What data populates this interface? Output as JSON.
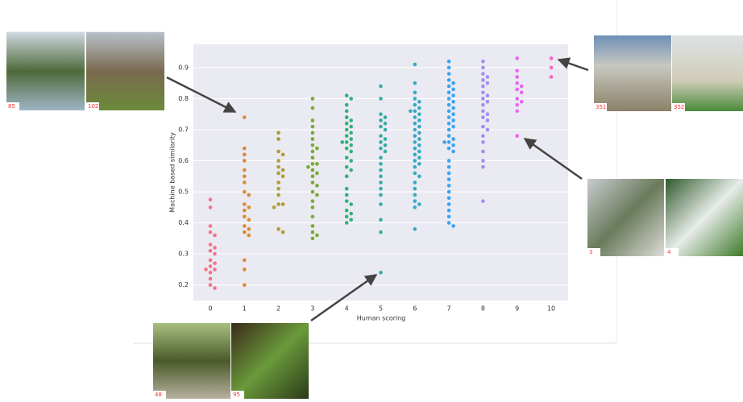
{
  "chart_data": {
    "type": "swarm",
    "x_label": "Human scoring",
    "y_label": "Machine based similarity",
    "categories": [
      "0",
      "1",
      "2",
      "3",
      "4",
      "5",
      "6",
      "7",
      "8",
      "9",
      "10"
    ],
    "colors": [
      "#f77189",
      "#dc8932",
      "#ae9d31",
      "#77ab31",
      "#33b07a",
      "#36ada4",
      "#38a9c5",
      "#3ba3ec",
      "#a48cf4",
      "#e866f4",
      "#f668c2"
    ],
    "values": [
      [
        0.475,
        0.45,
        0.39,
        0.37,
        0.36,
        0.33,
        0.32,
        0.31,
        0.3,
        0.28,
        0.27,
        0.26,
        0.25,
        0.25,
        0.24,
        0.22,
        0.2,
        0.19
      ],
      [
        0.74,
        0.64,
        0.62,
        0.6,
        0.57,
        0.55,
        0.53,
        0.5,
        0.49,
        0.46,
        0.45,
        0.44,
        0.42,
        0.41,
        0.39,
        0.38,
        0.37,
        0.36,
        0.28,
        0.25,
        0.2
      ],
      [
        0.69,
        0.67,
        0.63,
        0.62,
        0.6,
        0.58,
        0.57,
        0.56,
        0.55,
        0.53,
        0.51,
        0.49,
        0.46,
        0.46,
        0.45,
        0.38,
        0.37
      ],
      [
        0.8,
        0.77,
        0.73,
        0.71,
        0.69,
        0.67,
        0.65,
        0.64,
        0.63,
        0.61,
        0.59,
        0.59,
        0.58,
        0.57,
        0.56,
        0.55,
        0.53,
        0.52,
        0.5,
        0.49,
        0.47,
        0.45,
        0.42,
        0.39,
        0.37,
        0.36,
        0.35
      ],
      [
        0.81,
        0.8,
        0.78,
        0.76,
        0.74,
        0.73,
        0.72,
        0.71,
        0.7,
        0.69,
        0.68,
        0.67,
        0.66,
        0.66,
        0.65,
        0.64,
        0.63,
        0.61,
        0.6,
        0.58,
        0.57,
        0.55,
        0.51,
        0.49,
        0.47,
        0.46,
        0.44,
        0.43,
        0.42,
        0.41,
        0.4
      ],
      [
        0.84,
        0.8,
        0.75,
        0.74,
        0.73,
        0.72,
        0.71,
        0.7,
        0.68,
        0.67,
        0.66,
        0.65,
        0.64,
        0.63,
        0.61,
        0.59,
        0.57,
        0.55,
        0.53,
        0.51,
        0.49,
        0.46,
        0.41,
        0.37,
        0.24
      ],
      [
        0.91,
        0.85,
        0.82,
        0.8,
        0.79,
        0.78,
        0.77,
        0.76,
        0.76,
        0.75,
        0.74,
        0.73,
        0.72,
        0.71,
        0.7,
        0.69,
        0.68,
        0.67,
        0.66,
        0.65,
        0.64,
        0.63,
        0.62,
        0.61,
        0.6,
        0.59,
        0.58,
        0.56,
        0.55,
        0.53,
        0.51,
        0.49,
        0.47,
        0.46,
        0.45,
        0.38
      ],
      [
        0.92,
        0.9,
        0.88,
        0.86,
        0.85,
        0.84,
        0.83,
        0.82,
        0.81,
        0.8,
        0.79,
        0.78,
        0.77,
        0.76,
        0.75,
        0.74,
        0.73,
        0.72,
        0.71,
        0.7,
        0.68,
        0.67,
        0.66,
        0.66,
        0.65,
        0.64,
        0.63,
        0.6,
        0.58,
        0.56,
        0.54,
        0.52,
        0.5,
        0.48,
        0.46,
        0.44,
        0.42,
        0.4,
        0.39
      ],
      [
        0.92,
        0.9,
        0.88,
        0.87,
        0.86,
        0.85,
        0.84,
        0.82,
        0.81,
        0.8,
        0.79,
        0.78,
        0.76,
        0.75,
        0.74,
        0.73,
        0.71,
        0.7,
        0.68,
        0.66,
        0.63,
        0.6,
        0.58,
        0.47
      ],
      [
        0.93,
        0.89,
        0.87,
        0.85,
        0.84,
        0.83,
        0.82,
        0.8,
        0.79,
        0.78,
        0.76,
        0.68
      ],
      [
        0.93,
        0.9,
        0.87
      ]
    ],
    "ylim": [
      0.15,
      0.975
    ],
    "yticks": [
      0.2,
      0.3,
      0.4,
      0.5,
      0.6,
      0.7,
      0.8,
      0.9
    ],
    "grid": true,
    "background": "#eaeaf2"
  },
  "image_groups": [
    {
      "labels": [
        "85",
        "102"
      ]
    },
    {
      "labels": [
        "351",
        "352"
      ]
    },
    {
      "labels": [
        "3",
        "4"
      ]
    },
    {
      "labels": [
        "48",
        "95"
      ]
    }
  ]
}
